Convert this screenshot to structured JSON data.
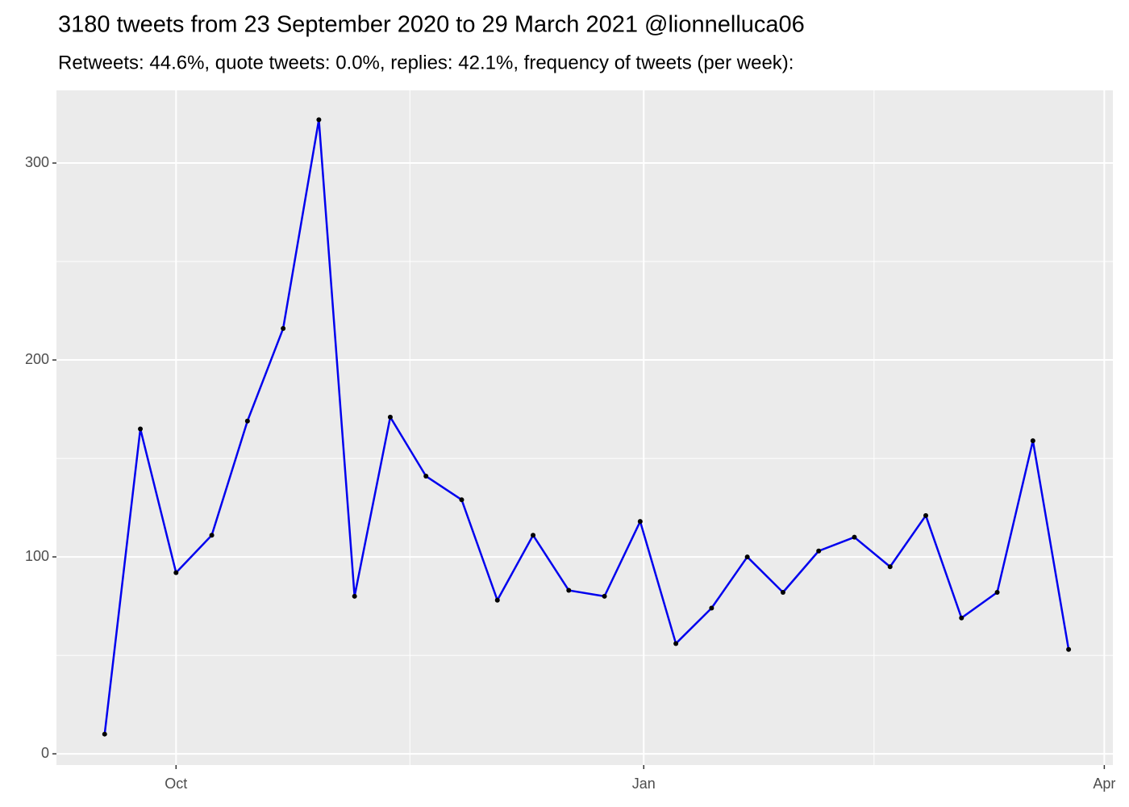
{
  "chart_data": {
    "type": "line",
    "title": "3180 tweets from 23 September 2020 to 29 March 2021 @lionnelluca06",
    "subtitle": "Retweets: 44.6%, quote tweets: 0.0%, replies: 42.1%, frequency of tweets (per week):",
    "categories": [
      null,
      null,
      null,
      null,
      null,
      null,
      null,
      null,
      null,
      null,
      null,
      null,
      null,
      null,
      null,
      null,
      null,
      null,
      null,
      null,
      null,
      null,
      null,
      null,
      null,
      null,
      null,
      null
    ],
    "values": [
      10,
      165,
      92,
      111,
      169,
      216,
      322,
      80,
      171,
      141,
      129,
      78,
      111,
      83,
      80,
      118,
      56,
      74,
      100,
      82,
      103,
      110,
      95,
      121,
      69,
      82,
      159,
      53
    ],
    "color": "#0000ee",
    "point_color": "#000000",
    "xlim": [
      -1.35,
      28.24
    ],
    "xticks": [
      {
        "value": 2.0,
        "label": "Oct"
      },
      {
        "value": 15.1,
        "label": "Jan"
      },
      {
        "value": 28.0,
        "label": "Apr"
      }
    ],
    "ylim": [
      -5.7,
      336.9
    ],
    "yticks": [
      0,
      100,
      200,
      300
    ],
    "grid": true
  }
}
